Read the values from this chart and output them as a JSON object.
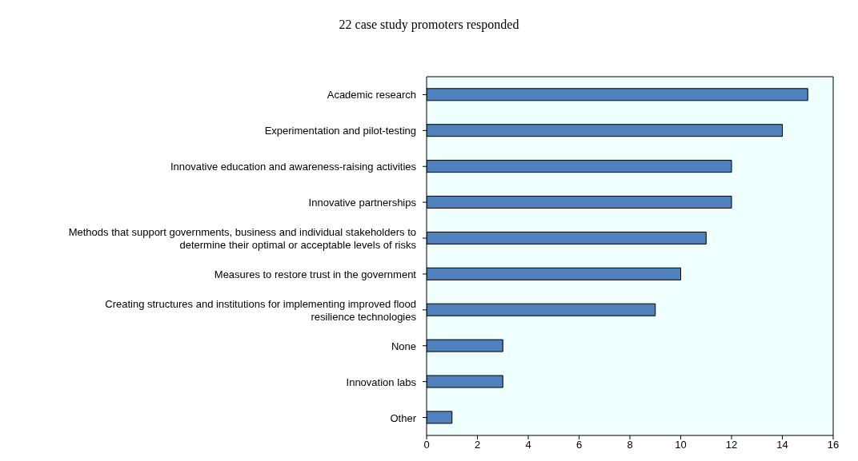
{
  "chart_data": {
    "type": "bar",
    "orientation": "horizontal",
    "title": "22 case study promoters responded",
    "categories": [
      "Academic research",
      "Experimentation and pilot-testing",
      "Innovative education and awareness-raising activities",
      "Innovative partnerships",
      "Methods that support governments, business and individual stakeholders to determine their optimal or acceptable levels of risks",
      "Measures to restore trust in the government",
      "Creating structures and institutions for implementing improved flood resilience technologies",
      "None",
      "Innovation labs",
      "Other"
    ],
    "values": [
      15,
      14,
      12,
      12,
      11,
      10,
      9,
      3,
      3,
      1
    ],
    "color": "#4f81bd",
    "xlim": [
      0,
      16
    ],
    "xticks": [
      0,
      2,
      4,
      6,
      8,
      10,
      12,
      14,
      16
    ]
  }
}
